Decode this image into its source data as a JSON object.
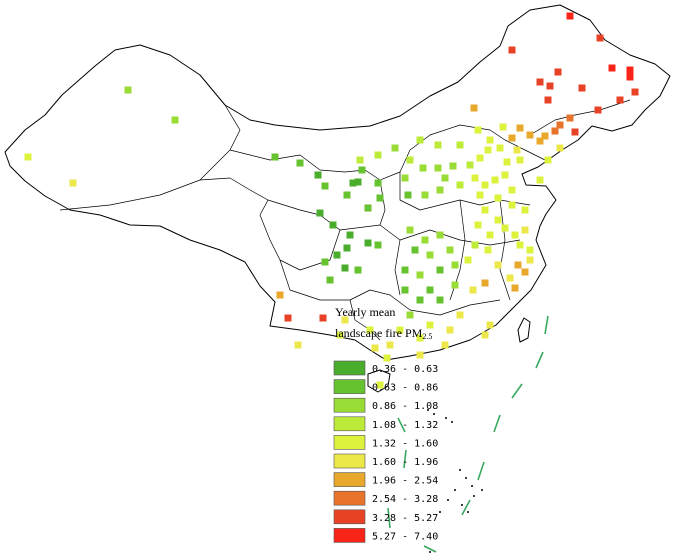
{
  "legend": {
    "title": "Yearly mean",
    "subtitle": "landscape fire PM",
    "subtitle_subscript": "2.5",
    "items": [
      {
        "label": "0.36 - 0.63",
        "color": "#4aad2c"
      },
      {
        "label": "0.63 - 0.86",
        "color": "#67c22f"
      },
      {
        "label": "0.86 - 1.08",
        "color": "#99dc35"
      },
      {
        "label": "1.08 - 1.32",
        "color": "#bdeb3a"
      },
      {
        "label": "1.32 - 1.60",
        "color": "#dcf23d"
      },
      {
        "label": "1.60 - 1.96",
        "color": "#ece84a"
      },
      {
        "label": "1.96 - 2.54",
        "color": "#e8a82c"
      },
      {
        "label": "2.54 - 3.28",
        "color": "#e8732a"
      },
      {
        "label": "3.28 - 5.27",
        "color": "#e84226"
      },
      {
        "label": "5.27 - 7.40",
        "color": "#f82418"
      }
    ]
  }
}
